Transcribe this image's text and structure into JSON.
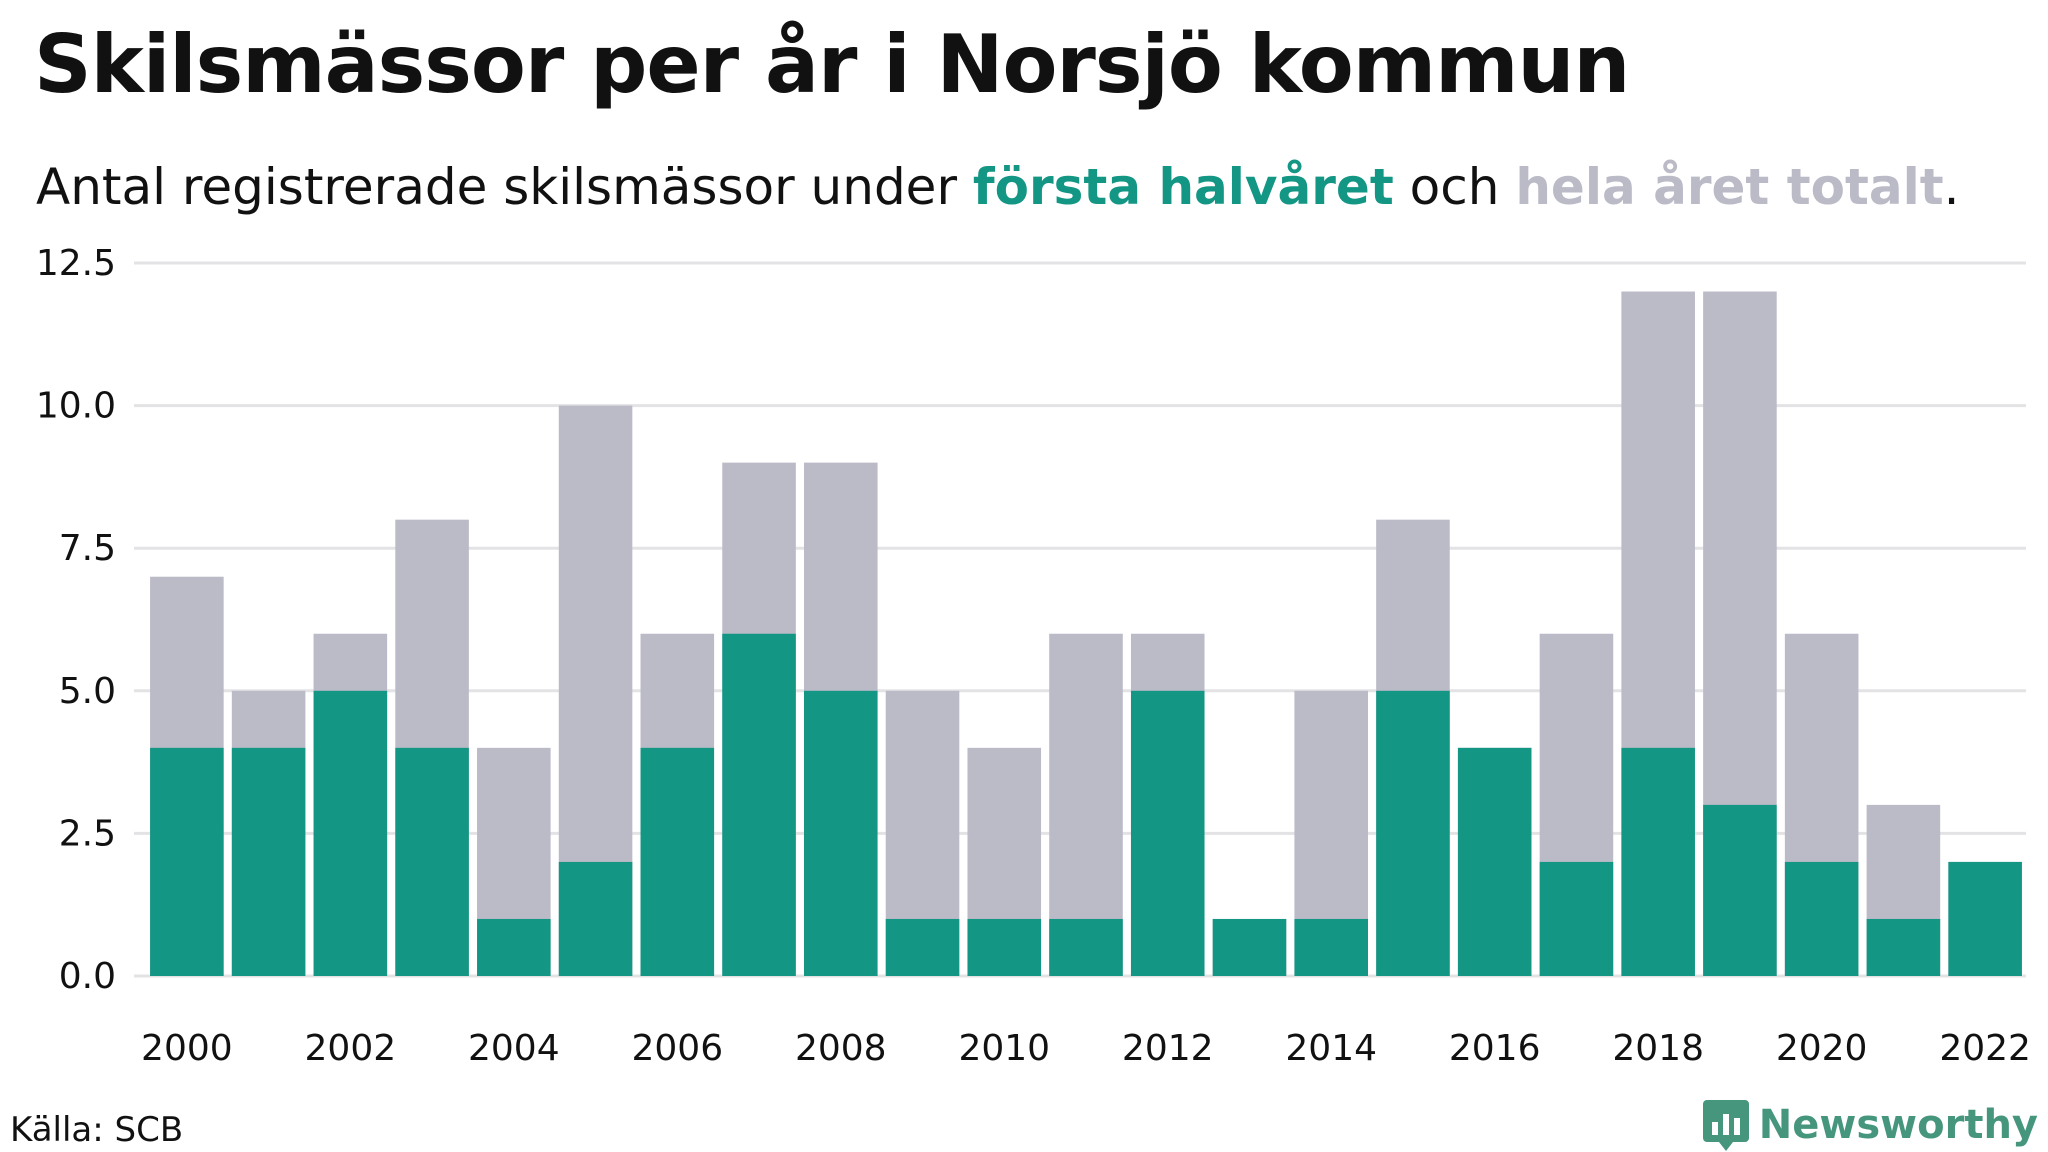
{
  "header": {
    "title": "Skilsmässor per år i Norsjö kommun",
    "subtitle_prefix": "Antal registrerade skilsmässor under ",
    "subtitle_first": "första halvåret",
    "subtitle_mid": " och ",
    "subtitle_total": "hela året totalt",
    "subtitle_end": "."
  },
  "footer": {
    "source": "Källa: SCB",
    "brand": "Newsworthy"
  },
  "colors": {
    "first_half": "#149685",
    "full_year": "#bbbac7",
    "grid": "#e3e3e6",
    "brand": "#46967e"
  },
  "chart_data": {
    "type": "bar",
    "categories": [
      "2000",
      "2001",
      "2002",
      "2003",
      "2004",
      "2005",
      "2006",
      "2007",
      "2008",
      "2009",
      "2010",
      "2011",
      "2012",
      "2013",
      "2014",
      "2015",
      "2016",
      "2017",
      "2018",
      "2019",
      "2020",
      "2021",
      "2022"
    ],
    "series": [
      {
        "name": "hela året totalt",
        "values": [
          7,
          5,
          6,
          8,
          4,
          10,
          6,
          9,
          9,
          5,
          4,
          6,
          6,
          1,
          5,
          8,
          4,
          6,
          12,
          12,
          6,
          3,
          2
        ]
      },
      {
        "name": "första halvåret",
        "values": [
          4,
          4,
          5,
          4,
          1,
          2,
          4,
          6,
          5,
          1,
          1,
          1,
          5,
          1,
          1,
          5,
          4,
          2,
          4,
          3,
          2,
          1,
          2
        ]
      }
    ],
    "x_tick_labels": [
      "2000",
      "2002",
      "2004",
      "2006",
      "2008",
      "2010",
      "2012",
      "2014",
      "2016",
      "2018",
      "2020",
      "2022"
    ],
    "y_ticks": [
      "0.0",
      "2.5",
      "5.0",
      "7.5",
      "10.0",
      "12.5"
    ],
    "ylim": [
      0,
      12.5
    ],
    "grid": true,
    "xlabel": "",
    "ylabel": ""
  }
}
